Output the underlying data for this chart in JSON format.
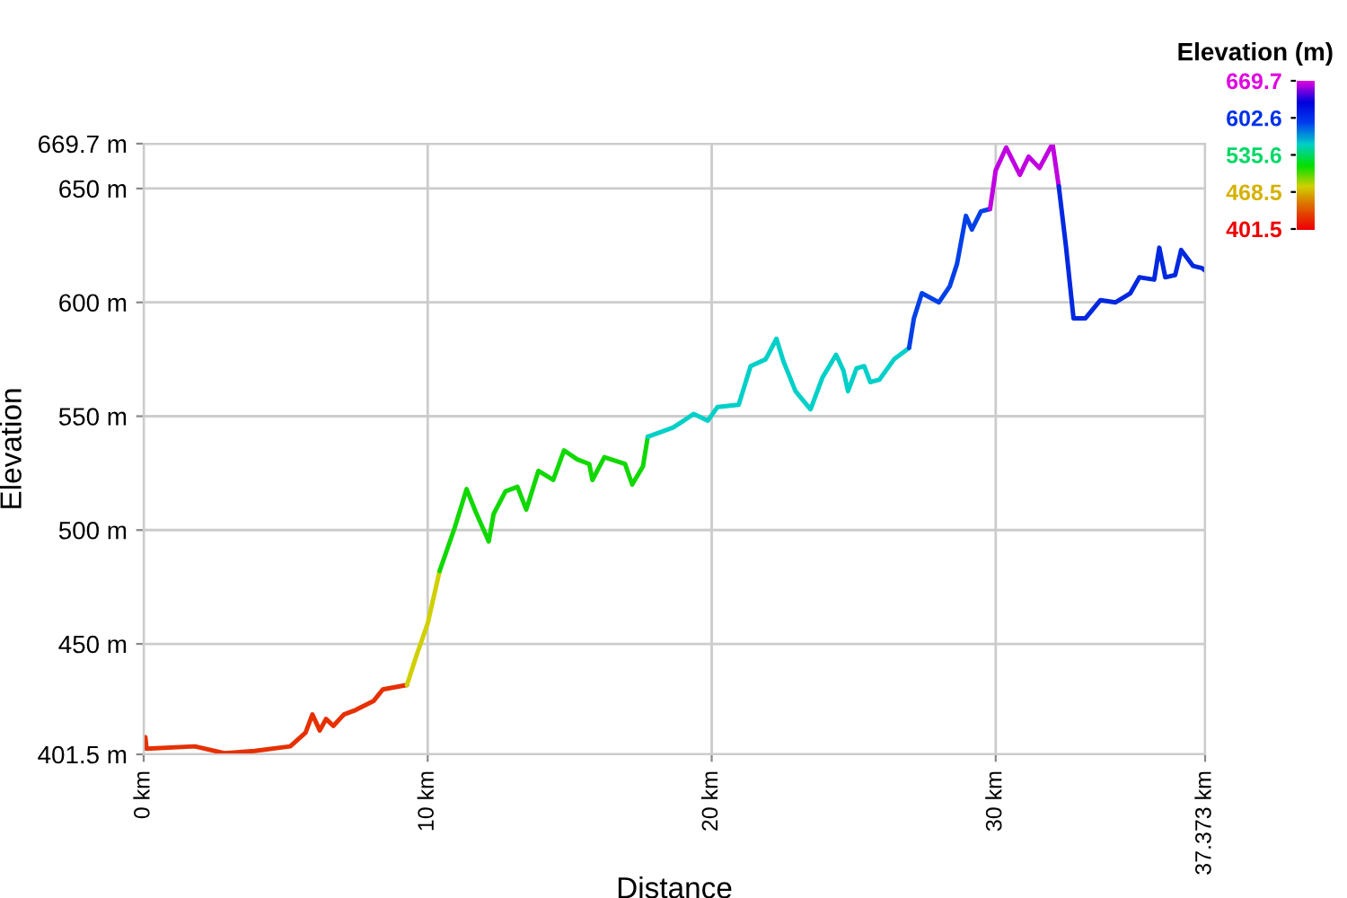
{
  "chart_data": {
    "type": "line",
    "xlabel": "Distance",
    "ylabel": "Elevation",
    "clabel": "Elevation (m)",
    "series": [
      {
        "color": "#e63000",
        "x": [
          0,
          0.06,
          0.1,
          1.8,
          2.84,
          3.9,
          5.16,
          5.7,
          5.94,
          6.2,
          6.42,
          6.68,
          7.05,
          7.47,
          8.1,
          8.42,
          9.27
        ],
        "values": [
          405,
          409,
          404,
          405,
          402,
          403,
          405,
          411,
          419,
          412,
          417,
          414,
          419,
          421,
          425,
          430,
          432
        ]
      },
      {
        "color": "#d0d000",
        "x": [
          9.27,
          9.58,
          10.0,
          10.42
        ],
        "values": [
          432,
          444,
          459,
          482
        ]
      },
      {
        "color": "#10d800",
        "x": [
          10.42,
          10.95,
          11.37,
          11.69,
          12.15,
          12.32,
          12.74,
          13.16,
          13.47,
          13.9,
          14.42,
          14.8,
          15.27,
          15.69,
          15.8,
          16.22,
          16.95,
          17.2,
          17.58,
          17.75
        ],
        "values": [
          482,
          501,
          518,
          508,
          495,
          507,
          517,
          519,
          509,
          526,
          522,
          535,
          531,
          529,
          522,
          532,
          529,
          520,
          528,
          541
        ]
      },
      {
        "color": "#00d0c8",
        "x": [
          17.75,
          18.64,
          19.37,
          19.86,
          20.2,
          20.95,
          21.37,
          21.9,
          22.28,
          22.53,
          22.95,
          23.48,
          23.9,
          24.38,
          24.64,
          24.8,
          25.1,
          25.37,
          25.58,
          25.9,
          26.42,
          26.95
        ],
        "values": [
          541,
          545,
          551,
          548,
          554,
          555,
          572,
          575,
          584,
          574,
          561,
          553,
          567,
          577,
          570,
          561,
          571,
          572,
          565,
          566,
          575,
          580
        ]
      },
      {
        "color": "#0040e8",
        "x": [
          26.95,
          27.12,
          27.4,
          28.0,
          28.38,
          28.64,
          28.95,
          29.16,
          29.48,
          29.8
        ],
        "values": [
          580,
          593,
          604,
          600,
          607,
          617,
          638,
          632,
          640,
          641
        ]
      },
      {
        "color": "#c000e0",
        "x": [
          29.8,
          30.0,
          30.37,
          30.85,
          31.16,
          31.54,
          32.0,
          32.22
        ],
        "values": [
          641,
          658,
          668,
          656,
          664,
          659,
          669.7,
          651
        ]
      },
      {
        "color": "#0028e0",
        "x": [
          32.22,
          32.47,
          32.74,
          33.16,
          33.69,
          34.22,
          34.74,
          35.06,
          35.58,
          35.76,
          35.97,
          36.32,
          36.53,
          36.95,
          37.27,
          37.373
        ],
        "values": [
          651,
          625,
          593,
          593,
          601,
          600,
          604,
          611,
          610,
          624,
          611,
          612,
          623,
          616,
          615,
          614
        ]
      }
    ],
    "xlim": [
      0,
      37.373
    ],
    "xticks": [
      {
        "value": 0,
        "label": "0 km"
      },
      {
        "value": 10,
        "label": "10 km"
      },
      {
        "value": 20,
        "label": "20 km"
      },
      {
        "value": 30,
        "label": "30 km"
      },
      {
        "value": 37.373,
        "label": "37.373 km"
      }
    ],
    "ylim": [
      401.5,
      669.7
    ],
    "yticks": [
      {
        "value": 401.5,
        "label": "401.5 m"
      },
      {
        "value": 450,
        "label": "450 m"
      },
      {
        "value": 500,
        "label": "500 m"
      },
      {
        "value": 550,
        "label": "550 m"
      },
      {
        "value": 600,
        "label": "600 m"
      },
      {
        "value": 650,
        "label": "650 m"
      },
      {
        "value": 669.7,
        "label": "669.7 m"
      }
    ],
    "clim": [
      401.5,
      669.7
    ],
    "cticks": [
      669.7,
      602.6,
      535.6,
      468.5,
      401.5
    ],
    "grid": true
  }
}
